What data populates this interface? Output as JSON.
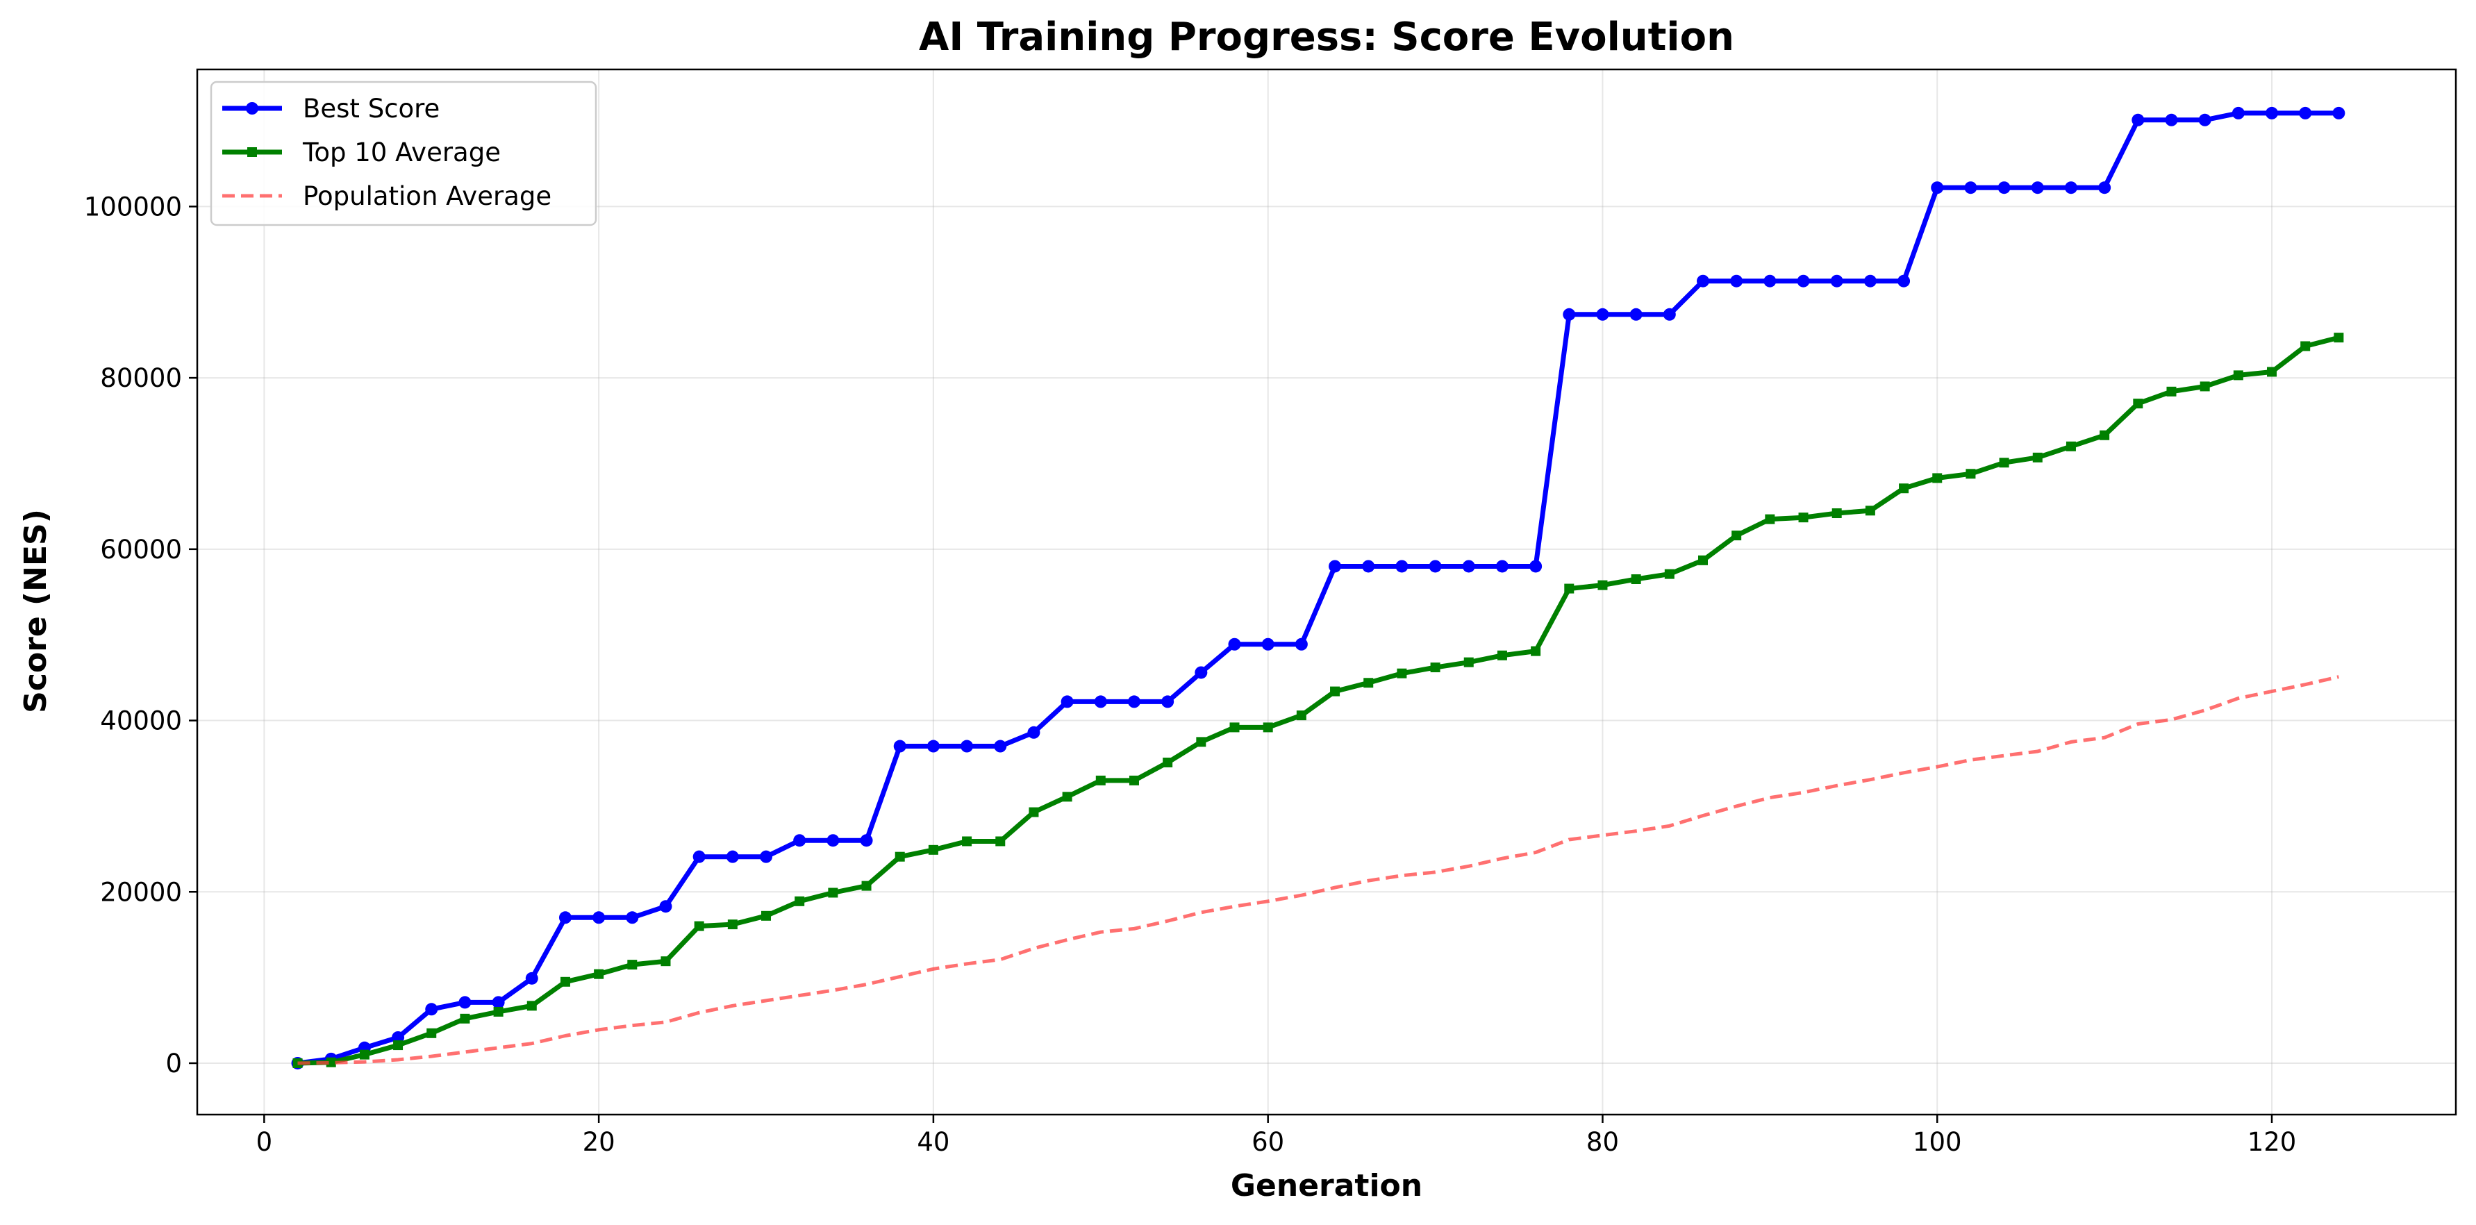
{
  "chart_data": {
    "type": "line",
    "title": "AI Training Progress: Score Evolution",
    "xlabel": "Generation",
    "ylabel": "Score (NES)",
    "xlim": [
      -4,
      131
    ],
    "ylim": [
      -6000,
      116000
    ],
    "xticks": [
      0,
      20,
      40,
      60,
      80,
      100,
      120
    ],
    "yticks": [
      0,
      20000,
      40000,
      60000,
      80000,
      100000
    ],
    "grid": true,
    "legend_position": "top-left",
    "x": [
      2,
      4,
      6,
      8,
      10,
      12,
      14,
      16,
      18,
      20,
      22,
      24,
      26,
      28,
      30,
      32,
      34,
      36,
      38,
      40,
      42,
      44,
      46,
      48,
      50,
      52,
      54,
      56,
      58,
      60,
      62,
      64,
      66,
      68,
      70,
      72,
      74,
      76,
      78,
      80,
      82,
      84,
      86,
      88,
      90,
      92,
      94,
      96,
      98,
      100,
      102,
      104,
      106,
      108,
      110,
      112,
      114,
      116,
      118,
      120,
      122,
      124
    ],
    "series": [
      {
        "name": "Best Score",
        "color": "#0000ff",
        "style": "solid",
        "marker": "circle",
        "values": [
          0,
          500,
          1800,
          3000,
          6300,
          7100,
          7100,
          9900,
          17000,
          17000,
          17000,
          18300,
          24100,
          24100,
          24100,
          26000,
          26000,
          26000,
          37000,
          37000,
          37000,
          37000,
          38600,
          42200,
          42200,
          42200,
          42200,
          45600,
          48900,
          48900,
          48900,
          58000,
          58000,
          58000,
          58000,
          58000,
          58000,
          58000,
          87400,
          87400,
          87400,
          87400,
          91300,
          91300,
          91300,
          91300,
          91300,
          91300,
          91300,
          102200,
          102200,
          102200,
          102200,
          102200,
          102200,
          110100,
          110100,
          110100,
          110900,
          110900,
          110900,
          110900
        ]
      },
      {
        "name": "Top 10 Average",
        "color": "#008000",
        "style": "solid",
        "marker": "square",
        "values": [
          0,
          100,
          1000,
          2100,
          3500,
          5200,
          6000,
          6700,
          9500,
          10400,
          11500,
          11900,
          16000,
          16200,
          17200,
          18900,
          19900,
          20700,
          24100,
          24900,
          25900,
          25900,
          29300,
          31100,
          33000,
          33000,
          35100,
          37500,
          39200,
          39200,
          40600,
          43400,
          44400,
          45500,
          46200,
          46800,
          47600,
          48100,
          55400,
          55800,
          56500,
          57100,
          58700,
          61600,
          63500,
          63700,
          64200,
          64500,
          67100,
          68300,
          68800,
          70100,
          70700,
          72000,
          73300,
          77000,
          78400,
          79000,
          80300,
          80700,
          83700,
          84700
        ]
      },
      {
        "name": "Population Average",
        "color": "#ff4040",
        "style": "dashed",
        "marker": "none",
        "values": [
          0,
          50,
          150,
          400,
          800,
          1300,
          1800,
          2300,
          3200,
          3900,
          4400,
          4800,
          5900,
          6700,
          7300,
          7900,
          8500,
          9200,
          10100,
          11000,
          11600,
          12100,
          13400,
          14400,
          15300,
          15700,
          16600,
          17600,
          18300,
          18900,
          19600,
          20500,
          21300,
          21900,
          22300,
          23000,
          23900,
          24600,
          26100,
          26600,
          27100,
          27700,
          28900,
          30000,
          31000,
          31600,
          32400,
          33100,
          33900,
          34600,
          35400,
          35900,
          36400,
          37500,
          38000,
          39600,
          40100,
          41200,
          42600,
          43400,
          44200,
          45100
        ]
      }
    ]
  }
}
